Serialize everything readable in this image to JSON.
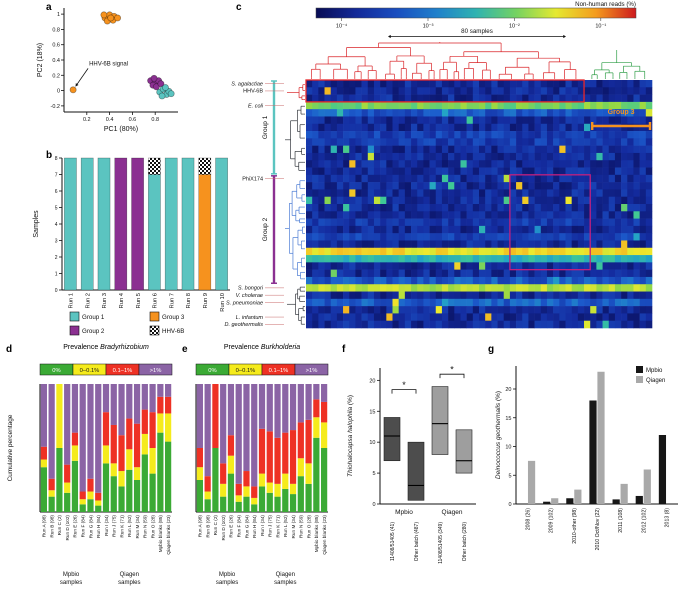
{
  "panels": {
    "a": {
      "letter": "a"
    },
    "b": {
      "letter": "b"
    },
    "c": {
      "letter": "c"
    },
    "d": {
      "letter": "d",
      "title_prefix": "Prevalence ",
      "title_genus": "Bradyrhizobium"
    },
    "e": {
      "letter": "e",
      "title_prefix": "Prevalence ",
      "title_genus": "Burkholderia"
    },
    "f": {
      "letter": "f"
    },
    "g": {
      "letter": "g"
    }
  },
  "colors": {
    "group1": "#5BC4C0",
    "group2": "#8B3091",
    "group3": "#F6921E",
    "prev_0": "#3BAA35",
    "prev_0_01": "#F5EB1C",
    "prev_01_1": "#EE3124",
    "prev_gt1": "#8B64A5",
    "mpbio": "#161616",
    "qiagen": "#A9A9A9",
    "box_mpbio": "#4D4D4D",
    "box_qiagen": "#9E9E9E",
    "dendro_red": "#D92327",
    "dendro_green": "#2E9E46",
    "dendro_dark": "#33373D",
    "dendro_blue": "#4A7BD4",
    "highlight_red": "#E8262A",
    "highlight_magenta": "#C3207E"
  },
  "chart_data": [
    {
      "panel": "a",
      "type": "scatter",
      "xlabel": "PC1 (80%)",
      "ylabel": "PC2 (18%)",
      "xlim": [
        0,
        1.0
      ],
      "ylim": [
        -0.28,
        1.08
      ],
      "xticks": [
        0.2,
        0.4,
        0.6,
        0.8
      ],
      "yticks": [
        -0.2,
        0,
        0.2,
        0.4,
        0.6,
        0.8,
        1.0
      ],
      "annotation": {
        "text": "HHV-6B signal",
        "tx": 0.22,
        "ty": 0.33,
        "ax": 0.08,
        "ay": 0.01
      },
      "series": [
        {
          "name": "Group 3 cluster",
          "color_key": "group3",
          "points": [
            [
              0.36,
              0.95
            ],
            [
              0.4,
              0.99
            ],
            [
              0.44,
              0.97
            ],
            [
              0.38,
              0.91
            ],
            [
              0.43,
              0.92
            ],
            [
              0.47,
              0.95
            ],
            [
              0.41,
              0.95
            ],
            [
              0.35,
              0.99
            ]
          ]
        },
        {
          "name": "HHV-6B outlier",
          "color_key": "group3",
          "points": [
            [
              0.08,
              0.01
            ]
          ]
        },
        {
          "name": "Group 2 cluster",
          "color_key": "group2",
          "points": [
            [
              0.76,
              0.13
            ],
            [
              0.8,
              0.11
            ],
            [
              0.78,
              0.07
            ],
            [
              0.83,
              0.13
            ],
            [
              0.81,
              0.05
            ],
            [
              0.85,
              0.09
            ],
            [
              0.79,
              0.16
            ]
          ]
        },
        {
          "name": "Group 1 cluster",
          "color_key": "group1",
          "points": [
            [
              0.84,
              -0.02
            ],
            [
              0.87,
              0.02
            ],
            [
              0.9,
              -0.05
            ],
            [
              0.86,
              -0.07
            ],
            [
              0.92,
              -0.01
            ],
            [
              0.89,
              0.04
            ],
            [
              0.94,
              -0.04
            ]
          ]
        }
      ]
    },
    {
      "panel": "b",
      "type": "stacked_bar",
      "ylabel": "Samples",
      "ylim": [
        0,
        8
      ],
      "yticks": [
        0,
        1,
        2,
        3,
        4,
        5,
        6,
        7,
        8
      ],
      "categories": [
        "Run 1",
        "Run 2",
        "Run 3",
        "Run 4",
        "Run 5",
        "Run 6",
        "Run 7",
        "Run 8",
        "Run 9",
        "Run 10"
      ],
      "series": [
        {
          "name": "Group 1",
          "color_key": "group1",
          "values": [
            8,
            8,
            8,
            0,
            0,
            7,
            8,
            8,
            0,
            8
          ]
        },
        {
          "name": "Group 2",
          "color_key": "group2",
          "values": [
            0,
            0,
            0,
            8,
            8,
            0,
            0,
            0,
            0,
            0
          ]
        },
        {
          "name": "Group 3",
          "color_key": "group3",
          "values": [
            0,
            0,
            0,
            0,
            0,
            0,
            0,
            0,
            7,
            0
          ]
        },
        {
          "name": "HHV-6B",
          "color_key": "checker",
          "values": [
            0,
            0,
            0,
            0,
            0,
            1,
            0,
            0,
            1,
            0
          ]
        }
      ],
      "legend": [
        {
          "label": "Group 1",
          "color_key": "group1"
        },
        {
          "label": "Group 2",
          "color_key": "group2"
        },
        {
          "label": "Group 3",
          "color_key": "group3"
        },
        {
          "label": "HHV-6B",
          "color_key": "checker"
        }
      ]
    },
    {
      "panel": "c",
      "type": "heatmap",
      "colorbar": {
        "label": "Non-human reads (%)",
        "ticks": [
          "10⁻⁴",
          "10⁻³",
          "10⁻²",
          "10⁻¹"
        ]
      },
      "samples_annotation": "80 samples",
      "n_rows": 34,
      "n_cols": 56,
      "seed": 20,
      "base_level": 0.13,
      "noise": 0.16,
      "spike_prob": 0.03,
      "bright_rows": [
        {
          "row": 3,
          "level": 0.63
        },
        {
          "row": 23,
          "level": 0.78
        },
        {
          "row": 24,
          "level": 0.5
        },
        {
          "row": 28,
          "level": 0.7
        }
      ],
      "row_labels": [
        {
          "label": "S. agalactiae",
          "row": 0,
          "italic": true
        },
        {
          "label": "HHV-6B",
          "row": 1,
          "italic": false
        },
        {
          "label": "E. coli",
          "row": 3,
          "italic": true
        },
        {
          "label": "PhiX174",
          "row": 13,
          "italic": false
        },
        {
          "label": "S. bongori",
          "row": 28,
          "italic": true
        },
        {
          "label": "V. cholerae",
          "row": 29,
          "italic": true
        },
        {
          "label": "S. pneumoniae",
          "row": 30,
          "italic": true
        },
        {
          "label": "L. infantum",
          "row": 32,
          "italic": true
        },
        {
          "label": "D. geothermalis",
          "row": 33,
          "italic": true
        }
      ],
      "row_groups": [
        {
          "label": "Group 1",
          "row_start": 0,
          "row_end": 13,
          "color_key": "group1"
        },
        {
          "label": "Group 2",
          "row_start": 13,
          "row_end": 28,
          "color_key": "group2"
        }
      ],
      "col_group": {
        "label": "Group 3",
        "col_start": 46,
        "col_end": 56,
        "color_key": "group3"
      },
      "highlight_boxes": [
        {
          "row_start": 0,
          "row_end": 3,
          "col_start": 0,
          "col_end": 45,
          "color_key": "highlight_red"
        },
        {
          "row_start": 13,
          "row_end": 26,
          "col_start": 33,
          "col_end": 46,
          "color_key": "highlight_magenta"
        }
      ]
    },
    {
      "panel": "d",
      "type": "stacked_pct",
      "ylabel": "Cumulative percentage",
      "legend": [
        {
          "label": "0%",
          "color_key": "prev_0",
          "text": "#FFFFFF"
        },
        {
          "label": "0–0.1%",
          "color_key": "prev_0_01",
          "text": "#1A1A1A"
        },
        {
          "label": "0.1–1%",
          "color_key": "prev_01_1",
          "text": "#FFFFFF"
        },
        {
          "label": ">1%",
          "color_key": "prev_gt1",
          "text": "#FFFFFF"
        }
      ],
      "categories": [
        "Run A (98)",
        "Run B (98)",
        "Run C (2)",
        "Run D (102)",
        "Run E (26)",
        "Run F (84)",
        "Run G (84)",
        "Run H (84)",
        "Run I (34)",
        "Run J (75)",
        "Run K (71)",
        "Run L (52)",
        "Run M (34)",
        "Run N (59)",
        "Run O (28)",
        "Mpbio blanks (85)",
        "Qiagen blanks (23)"
      ],
      "series": [
        {
          "name": "0%",
          "color_key": "prev_0",
          "values": [
            35,
            12,
            50,
            15,
            40,
            6,
            10,
            5,
            38,
            28,
            20,
            33,
            25,
            45,
            30,
            62,
            55
          ]
        },
        {
          "name": "0–0.1%",
          "color_key": "prev_0_01",
          "values": [
            6,
            5,
            50,
            8,
            12,
            4,
            6,
            4,
            14,
            10,
            12,
            16,
            10,
            16,
            20,
            15,
            22
          ]
        },
        {
          "name": "0.1–1%",
          "color_key": "prev_01_1",
          "values": [
            10,
            9,
            0,
            14,
            10,
            6,
            10,
            6,
            26,
            30,
            28,
            24,
            34,
            19,
            28,
            13,
            13
          ]
        },
        {
          "name": ">1%",
          "color_key": "prev_gt1",
          "values": [
            49,
            74,
            0,
            63,
            38,
            84,
            74,
            85,
            22,
            32,
            40,
            27,
            31,
            20,
            22,
            10,
            10
          ]
        }
      ],
      "group_labels": [
        {
          "line1": "Mpbio",
          "line2": "samples",
          "start": 0,
          "end": 8
        },
        {
          "line1": "Qiagen",
          "line2": "samples",
          "start": 8,
          "end": 15
        }
      ]
    },
    {
      "panel": "e",
      "type": "stacked_pct",
      "ylabel": "",
      "legend": [
        {
          "label": "0%",
          "color_key": "prev_0",
          "text": "#FFFFFF"
        },
        {
          "label": "0–0.1%",
          "color_key": "prev_0_01",
          "text": "#1A1A1A"
        },
        {
          "label": "0.1–1%",
          "color_key": "prev_01_1",
          "text": "#FFFFFF"
        },
        {
          "label": ">1%",
          "color_key": "prev_gt1",
          "text": "#FFFFFF"
        }
      ],
      "categories": [
        "Run A (98)",
        "Run B (98)",
        "Run C (2)",
        "Run D (102)",
        "Run E (26)",
        "Run F (84)",
        "Run G (84)",
        "Run H (84)",
        "Run I (34)",
        "Run J (75)",
        "Run K (71)",
        "Run L (52)",
        "Run M (34)",
        "Run N (59)",
        "Run O (28)",
        "Mpbio blanks (85)",
        "Qiagen blanks (23)"
      ],
      "series": [
        {
          "name": "0%",
          "color_key": "prev_0",
          "values": [
            25,
            10,
            50,
            12,
            30,
            8,
            12,
            6,
            20,
            15,
            12,
            18,
            14,
            28,
            22,
            58,
            50
          ]
        },
        {
          "name": "0–0.1%",
          "color_key": "prev_0_01",
          "values": [
            10,
            6,
            0,
            10,
            14,
            5,
            8,
            5,
            10,
            8,
            10,
            12,
            8,
            14,
            16,
            16,
            20
          ]
        },
        {
          "name": "0.1–1%",
          "color_key": "prev_01_1",
          "values": [
            15,
            12,
            50,
            16,
            16,
            9,
            12,
            9,
            35,
            40,
            36,
            32,
            42,
            28,
            34,
            14,
            16
          ]
        },
        {
          "name": ">1%",
          "color_key": "prev_gt1",
          "values": [
            50,
            72,
            0,
            62,
            40,
            78,
            68,
            80,
            35,
            37,
            42,
            38,
            36,
            30,
            28,
            12,
            14
          ]
        }
      ],
      "group_labels": [
        {
          "line1": "Mpbio",
          "line2": "samples",
          "start": 0,
          "end": 8
        },
        {
          "line1": "Qiagen",
          "line2": "samples",
          "start": 8,
          "end": 15
        }
      ]
    },
    {
      "panel": "f",
      "type": "box",
      "ylabel_italic": "Thiohalocapsa halophila",
      "ylabel_suffix": " (%)",
      "ylim": [
        0,
        22
      ],
      "yticks": [
        0,
        5,
        10,
        15,
        20
      ],
      "boxes": [
        {
          "label": "11408/51405 (41)",
          "group": "Mpbio",
          "color_key": "box_mpbio",
          "q1": 7,
          "median": 11,
          "q3": 14
        },
        {
          "label": "Other batch (487)",
          "group": "Mpbio",
          "color_key": "box_mpbio",
          "q1": 0.6,
          "median": 3,
          "q3": 10
        },
        {
          "label": "11408/51405 (349)",
          "group": "Qiagen",
          "color_key": "box_qiagen",
          "q1": 8,
          "median": 13,
          "q3": 19
        },
        {
          "label": "Other batch (280)",
          "group": "Qiagen",
          "color_key": "box_qiagen",
          "q1": 5,
          "median": 7,
          "q3": 12
        }
      ],
      "group_labels": [
        {
          "label": "Mpbio",
          "boxes": [
            0,
            1
          ]
        },
        {
          "label": "Qiagen",
          "boxes": [
            2,
            3
          ]
        }
      ],
      "significance": [
        {
          "a": 0,
          "b": 1,
          "label": "*",
          "y": 18.5
        },
        {
          "a": 2,
          "b": 3,
          "label": "*",
          "y": 21
        }
      ]
    },
    {
      "panel": "g",
      "type": "grouped_bar",
      "ylabel_italic": "Deinococcus geothermalis",
      "ylabel_suffix": " (%)",
      "ylim": [
        0,
        24
      ],
      "yticks": [
        0,
        5,
        10,
        15,
        20
      ],
      "categories": [
        "2008 (26)",
        "2009 (102)",
        "2010-other (98)",
        "2010 Oct/Nov (22)",
        "2011 (108)",
        "2012 (102)",
        "2013 (8)"
      ],
      "series": [
        {
          "name": "Mpbio",
          "color_key": "mpbio",
          "values": [
            0,
            0.4,
            1.0,
            18,
            0.8,
            1.4,
            12
          ]
        },
        {
          "name": "Qiagen",
          "color_key": "qiagen",
          "values": [
            7.5,
            1.0,
            2.5,
            23,
            3.5,
            6,
            0
          ]
        }
      ],
      "legend": [
        {
          "label": "Mpbio",
          "color_key": "mpbio"
        },
        {
          "label": "Qiagen",
          "color_key": "qiagen"
        }
      ]
    }
  ]
}
